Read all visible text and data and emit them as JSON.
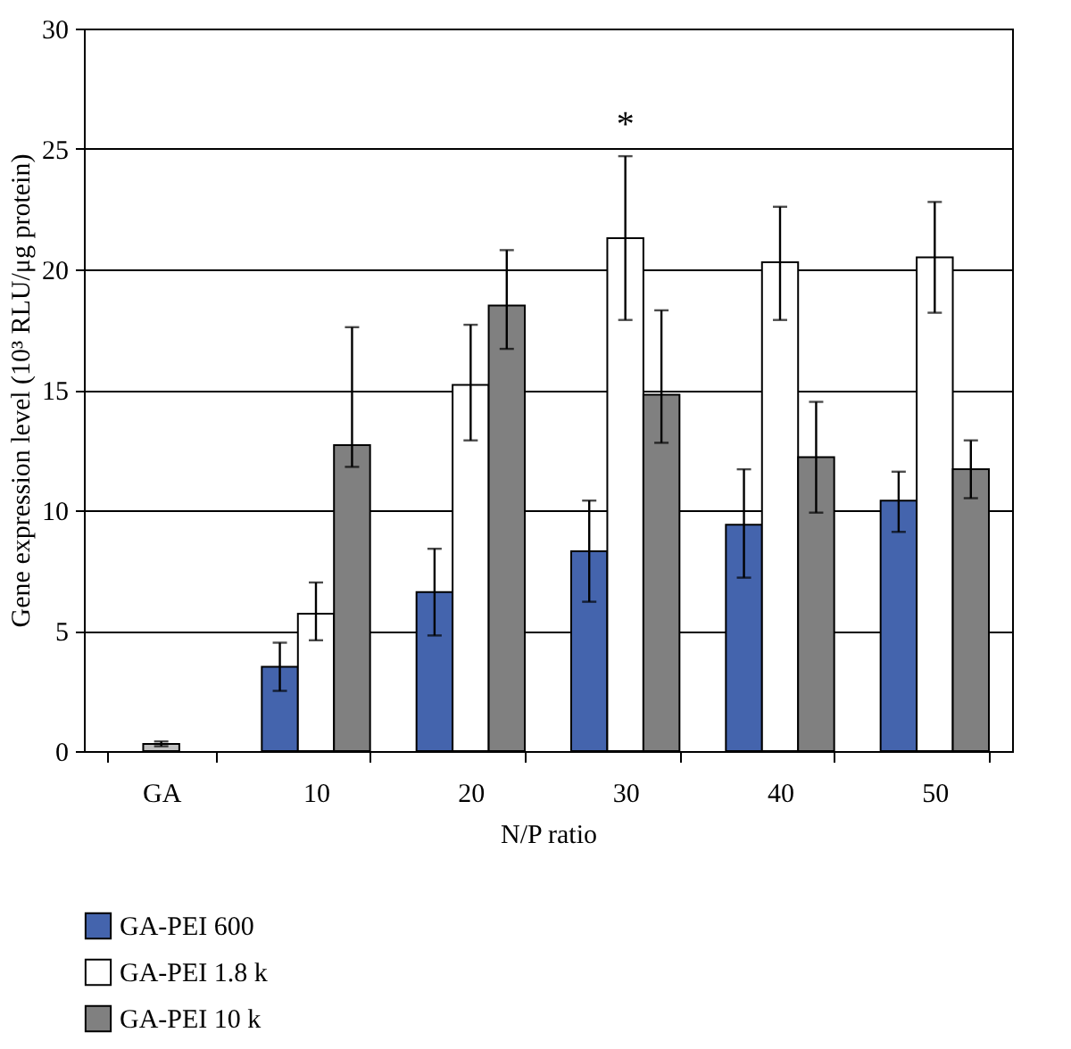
{
  "chart_data": {
    "type": "bar",
    "xlabel": "N/P ratio",
    "ylabel": "Gene expression level (10³ RLU/μg protein)",
    "categories": [
      "GA",
      "10",
      "20",
      "30",
      "40",
      "50"
    ],
    "series": [
      {
        "name": "GA-PEI 600",
        "color": "#4464ad",
        "values": [
          null,
          3.5,
          6.6,
          8.3,
          9.4,
          10.4
        ],
        "errors": [
          null,
          [
            2.5,
            4.5
          ],
          [
            4.8,
            8.4
          ],
          [
            6.2,
            10.4
          ],
          [
            7.2,
            11.7
          ],
          [
            9.1,
            11.6
          ]
        ]
      },
      {
        "name": "GA-PEI 1.8 k",
        "color": "#ffffff",
        "colors": [
          "#c0c0c0",
          "#ffffff",
          "#ffffff",
          "#ffffff",
          "#ffffff",
          "#ffffff"
        ],
        "values": [
          0.3,
          5.7,
          15.2,
          21.3,
          20.3,
          20.5
        ],
        "errors": [
          [
            0.2,
            0.4
          ],
          [
            4.6,
            7
          ],
          [
            12.9,
            17.7
          ],
          [
            17.9,
            24.7
          ],
          [
            17.9,
            22.6
          ],
          [
            18.2,
            22.8
          ]
        ]
      },
      {
        "name": "GA-PEI 10 k",
        "color": "#808080",
        "values": [
          null,
          12.7,
          18.5,
          14.8,
          12.2,
          11.7
        ],
        "errors": [
          null,
          [
            11.8,
            17.6
          ],
          [
            16.7,
            20.8
          ],
          [
            12.8,
            18.3
          ],
          [
            9.9,
            14.5
          ],
          [
            10.5,
            12.9
          ]
        ]
      }
    ],
    "ylim": [
      0,
      30
    ],
    "yticks": [
      0,
      5,
      10,
      15,
      20,
      25,
      30
    ],
    "grid": "y",
    "legend": "bottom left",
    "annotations": [
      "*"
    ]
  }
}
